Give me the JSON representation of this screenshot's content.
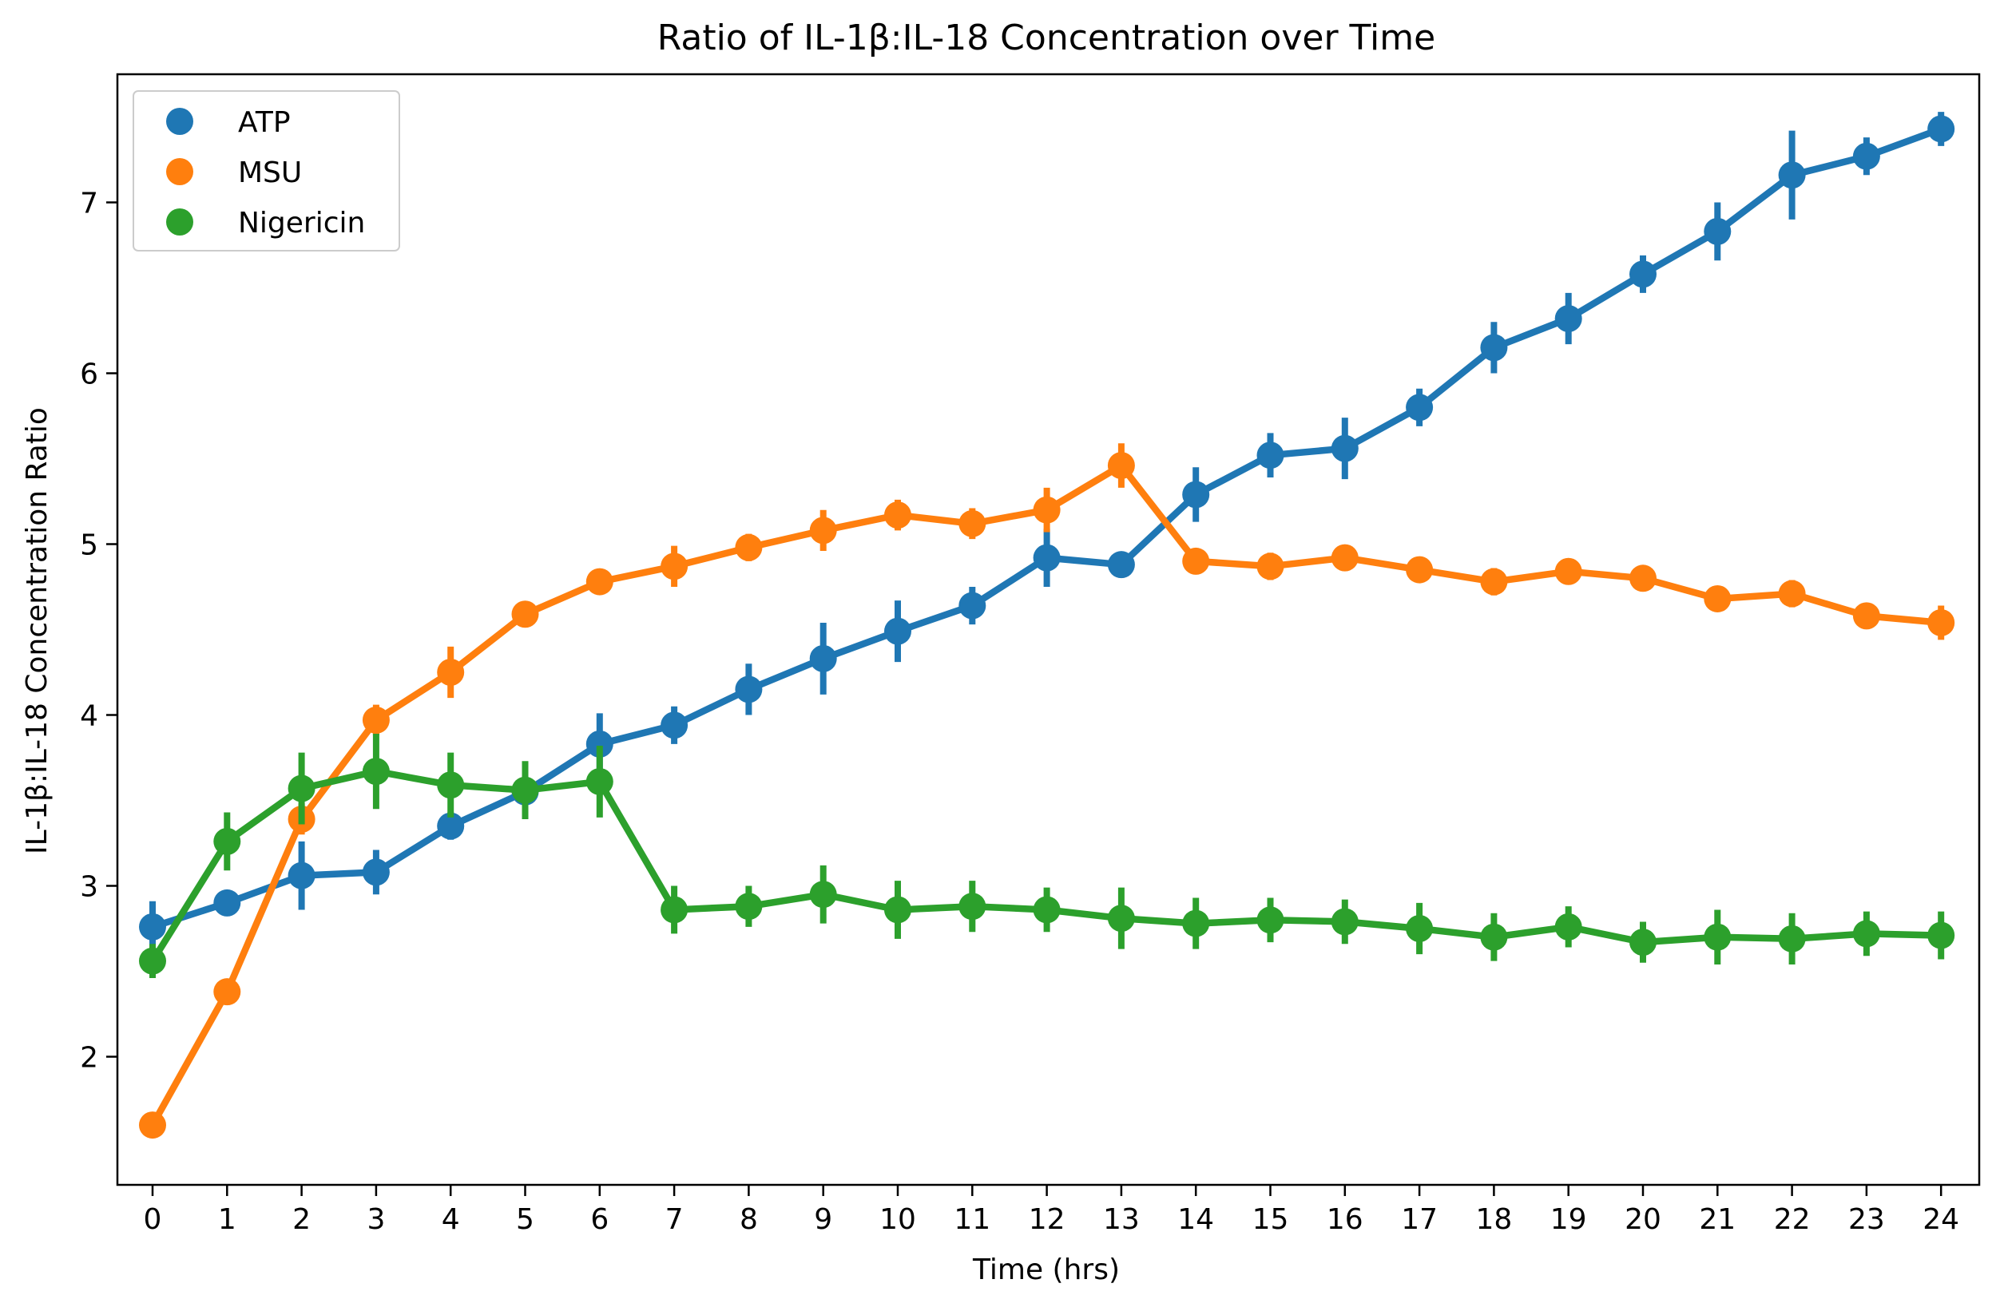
{
  "chart_data": {
    "type": "line",
    "title": "Ratio of IL-1β:IL-18 Concentration over Time",
    "xlabel": "Time (hrs)",
    "ylabel": "IL-1β:IL-18 Concentration Ratio",
    "categories": [
      "0",
      "1",
      "2",
      "3",
      "4",
      "5",
      "6",
      "7",
      "8",
      "9",
      "10",
      "11",
      "12",
      "13",
      "14",
      "15",
      "16",
      "17",
      "18",
      "19",
      "20",
      "21",
      "22",
      "23",
      "24"
    ],
    "ylim": [
      1.25,
      7.75
    ],
    "yticks": [
      "2",
      "3",
      "4",
      "5",
      "6",
      "7"
    ],
    "grid": false,
    "legend_position": "top-left",
    "series": [
      {
        "name": "ATP",
        "color": "#1f77b4",
        "values": [
          2.76,
          2.9,
          3.06,
          3.08,
          3.35,
          3.55,
          3.83,
          3.94,
          4.15,
          4.33,
          4.49,
          4.64,
          4.92,
          4.88,
          5.29,
          5.52,
          5.56,
          5.8,
          6.15,
          6.32,
          6.58,
          6.83,
          7.16,
          7.27,
          7.43
        ],
        "error": [
          0.15,
          0.05,
          0.2,
          0.13,
          0.08,
          0.12,
          0.18,
          0.11,
          0.15,
          0.21,
          0.18,
          0.11,
          0.17,
          0.05,
          0.16,
          0.13,
          0.18,
          0.11,
          0.15,
          0.15,
          0.11,
          0.17,
          0.26,
          0.11,
          0.1
        ]
      },
      {
        "name": "MSU",
        "color": "#ff7f0e",
        "values": [
          1.6,
          2.38,
          3.39,
          3.97,
          4.25,
          4.59,
          4.78,
          4.87,
          4.98,
          5.08,
          5.17,
          5.12,
          5.2,
          5.46,
          4.9,
          4.87,
          4.92,
          4.85,
          4.78,
          4.84,
          4.8,
          4.68,
          4.71,
          4.58,
          4.54
        ],
        "error": [
          0.07,
          0.07,
          0.09,
          0.09,
          0.15,
          0.07,
          0.07,
          0.12,
          0.08,
          0.12,
          0.09,
          0.09,
          0.13,
          0.13,
          0.06,
          0.08,
          0.07,
          0.06,
          0.08,
          0.07,
          0.07,
          0.07,
          0.08,
          0.07,
          0.1
        ]
      },
      {
        "name": "Nigericin",
        "color": "#2ca02c",
        "values": [
          2.56,
          3.26,
          3.57,
          3.67,
          3.59,
          3.56,
          3.61,
          2.86,
          2.88,
          2.95,
          2.86,
          2.88,
          2.86,
          2.81,
          2.78,
          2.8,
          2.79,
          2.75,
          2.7,
          2.76,
          2.67,
          2.7,
          2.69,
          2.72,
          2.71
        ],
        "error": [
          0.1,
          0.17,
          0.21,
          0.22,
          0.19,
          0.17,
          0.21,
          0.14,
          0.12,
          0.17,
          0.17,
          0.15,
          0.13,
          0.18,
          0.15,
          0.13,
          0.13,
          0.15,
          0.14,
          0.12,
          0.12,
          0.16,
          0.15,
          0.13,
          0.14
        ]
      }
    ]
  }
}
